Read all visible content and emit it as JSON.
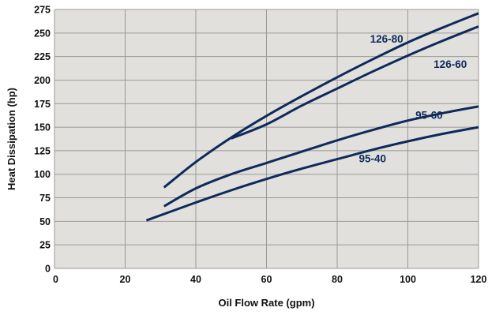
{
  "chart_data": {
    "type": "line",
    "title": "",
    "xlabel": "Oil Flow Rate (gpm)",
    "ylabel": "Heat Dissipation (hp)",
    "xlim": [
      0,
      120
    ],
    "ylim": [
      0,
      275
    ],
    "x_ticks": [
      "0",
      "20",
      "40",
      "60",
      "80",
      "100",
      "120"
    ],
    "y_ticks": [
      "0",
      "25",
      "50",
      "75",
      "100",
      "125",
      "150",
      "175",
      "200",
      "225",
      "250",
      "275"
    ],
    "grid": true,
    "legend": "none",
    "series": [
      {
        "name": "126-80",
        "points": [
          [
            31,
            86
          ],
          [
            40,
            113
          ],
          [
            50,
            139
          ],
          [
            60,
            162
          ],
          [
            70,
            183
          ],
          [
            80,
            203
          ],
          [
            90,
            222
          ],
          [
            100,
            240
          ],
          [
            110,
            256
          ],
          [
            120,
            271
          ]
        ]
      },
      {
        "name": "126-60",
        "points": [
          [
            50,
            138
          ],
          [
            60,
            153
          ],
          [
            70,
            173
          ],
          [
            80,
            191
          ],
          [
            90,
            209
          ],
          [
            100,
            226
          ],
          [
            110,
            242
          ],
          [
            120,
            257
          ]
        ]
      },
      {
        "name": "95-60",
        "points": [
          [
            31,
            66
          ],
          [
            40,
            85
          ],
          [
            50,
            100
          ],
          [
            60,
            112
          ],
          [
            70,
            124
          ],
          [
            80,
            136
          ],
          [
            90,
            147
          ],
          [
            100,
            157
          ],
          [
            110,
            165
          ],
          [
            120,
            172
          ]
        ]
      },
      {
        "name": "95-40",
        "points": [
          [
            26,
            51
          ],
          [
            40,
            70
          ],
          [
            50,
            83
          ],
          [
            60,
            95
          ],
          [
            70,
            106
          ],
          [
            80,
            116
          ],
          [
            90,
            126
          ],
          [
            100,
            135
          ],
          [
            110,
            143
          ],
          [
            120,
            150
          ]
        ]
      }
    ],
    "colors": {
      "plot_background": "#e2e0dd",
      "grid": "#9c9a97",
      "line": "#0e2a5a"
    }
  }
}
